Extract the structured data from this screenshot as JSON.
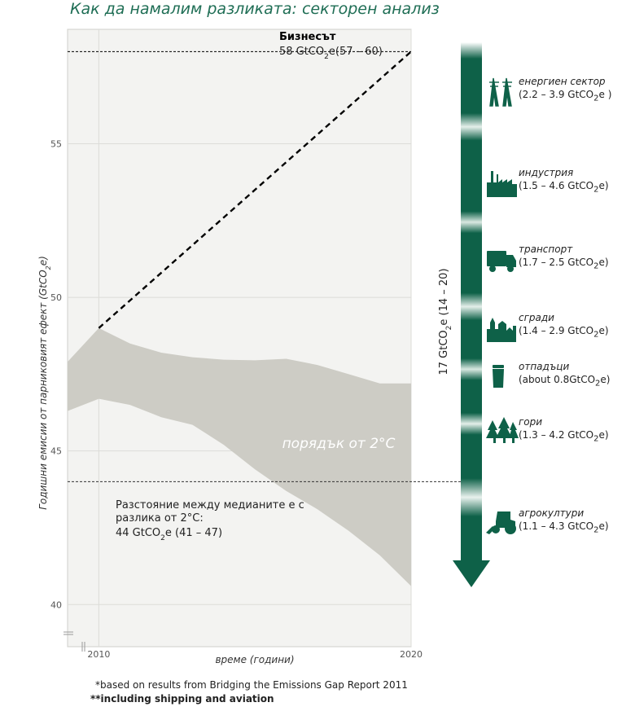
{
  "title": "Как да намалим разликата: секторен анализ",
  "chart_data": {
    "type": "area",
    "ylabel_pre": "Годишни емисии от парниковият ефект (GtCO",
    "ylabel_sub": "2",
    "ylabel_post": "e)",
    "xlabel": "време (години)",
    "xlim": [
      2009,
      2020
    ],
    "ylim": [
      39,
      58.3
    ],
    "x_ticks": [
      2010,
      2020
    ],
    "y_ticks": [
      40,
      45,
      50,
      55
    ],
    "band_label": "порядък от 2°C",
    "band_x": [
      2009,
      2010,
      2011,
      2012,
      2013,
      2014,
      2015,
      2016,
      2017,
      2018,
      2019,
      2020
    ],
    "band_upper": [
      47.9,
      49.0,
      48.5,
      48.2,
      48.05,
      47.97,
      47.95,
      48.0,
      47.8,
      47.5,
      47.2,
      47.2
    ],
    "band_lower": [
      46.3,
      46.7,
      46.5,
      46.1,
      45.85,
      45.2,
      44.4,
      43.7,
      43.1,
      42.4,
      41.6,
      40.6
    ],
    "bau": {
      "label": "Бизнесът",
      "value_pre": "58 GtCO",
      "value_sub": "2",
      "value_post": "e(57 – 60)",
      "x": [
        2010,
        2020
      ],
      "y": [
        49,
        58
      ]
    },
    "gap_line": {
      "y": 44,
      "label_line1": "Разстояние между медианите е с",
      "label_line2": "разлика от 2°C:",
      "value_pre": "44  GtCO",
      "value_sub": "2",
      "value_post": "e (41 – 47)"
    },
    "arrow": {
      "label_pre": "17 GtCO",
      "label_sub": "2",
      "label_post": "e (14 – 20)",
      "color": "#0e6148"
    }
  },
  "sectors": [
    {
      "icon": "power-tower-icon",
      "name": "енергиен сектор",
      "pre": "(2.2 – 3.9 GtCO",
      "post": "e )"
    },
    {
      "icon": "factory-icon",
      "name": "индустрия",
      "pre": "(1.5 – 4.6  GtCO",
      "post": "e)"
    },
    {
      "icon": "truck-icon",
      "name": "транспорт",
      "pre": "(1.7 – 2.5  GtCO",
      "post": "e)"
    },
    {
      "icon": "buildings-icon",
      "name": "сгради",
      "pre": "(1.4 – 2.9  GtCO",
      "post": "e)"
    },
    {
      "icon": "waste-bin-icon",
      "name": "отпадъци",
      "pre": "(about 0.8GtCO",
      "post": "e)"
    },
    {
      "icon": "trees-icon",
      "name": "гори",
      "pre": "(1.3 – 4.2  GtCO",
      "post": "e)"
    },
    {
      "icon": "tractor-icon",
      "name": "агрокултури",
      "pre": "(1.1 – 4.3  GtCO",
      "post": "e)"
    }
  ],
  "subscript": "2",
  "colors": {
    "title": "#1f6e55",
    "arrow": "#0e6148",
    "band": "#cdccc5",
    "plot_bg": "#f3f3f1"
  },
  "footnotes": {
    "note1": "*based on results from Bridging the Emissions Gap Report 2011",
    "note2": "**including shipping and aviation"
  }
}
